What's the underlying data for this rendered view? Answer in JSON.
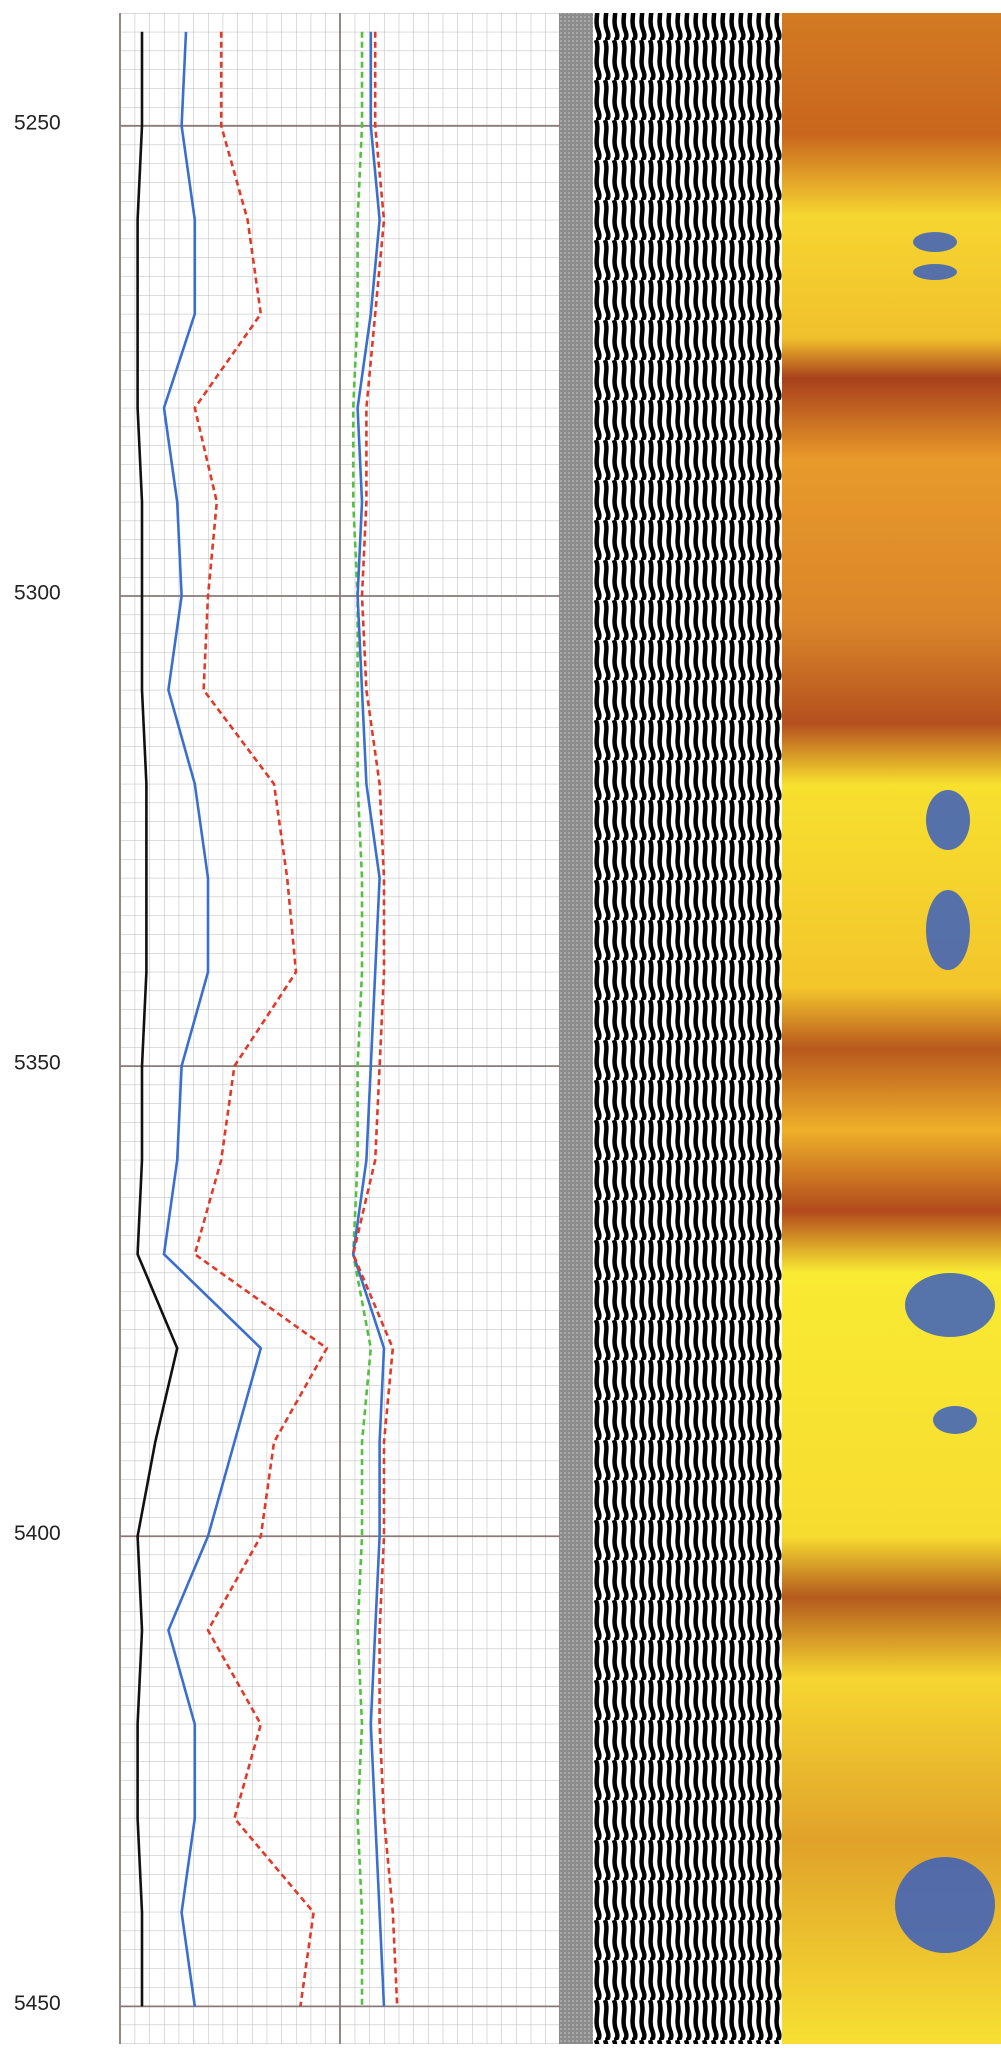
{
  "chart_data": {
    "type": "line",
    "orientation": "vertical",
    "x": [
      5240,
      5250,
      5260,
      5270,
      5280,
      5290,
      5300,
      5310,
      5320,
      5330,
      5340,
      5350,
      5360,
      5370,
      5380,
      5390,
      5400,
      5410,
      5420,
      5430,
      5440,
      5450
    ],
    "xlim": [
      5238,
      5454
    ],
    "xticks": [
      5250,
      5300,
      5350,
      5400,
      5450
    ],
    "ylim": [
      0,
      100
    ],
    "grid": true,
    "series": [
      {
        "color": "#111111",
        "dashed": false,
        "values": [
          5,
          5,
          4,
          4,
          4,
          5,
          5,
          5,
          6,
          6,
          6,
          5,
          5,
          4,
          13,
          8,
          4,
          5,
          4,
          4,
          5,
          5
        ]
      },
      {
        "color": "#3a6fd0",
        "dashed": false,
        "values": [
          15,
          14,
          17,
          17,
          10,
          13,
          14,
          11,
          17,
          20,
          20,
          14,
          13,
          10,
          32,
          26,
          20,
          11,
          17,
          17,
          14,
          17
        ]
      },
      {
        "color": "#e03a2a",
        "dashed": true,
        "values": [
          23,
          23,
          29,
          32,
          17,
          22,
          20,
          19,
          35,
          38,
          40,
          26,
          23,
          17,
          47,
          35,
          32,
          20,
          32,
          26,
          44,
          41
        ]
      },
      {
        "color": "#55c040",
        "dashed": true,
        "values": [
          55,
          55,
          54,
          54,
          53,
          53,
          54,
          54,
          54,
          55,
          55,
          54,
          54,
          53,
          57,
          55,
          55,
          54,
          55,
          54,
          55,
          55
        ]
      },
      {
        "color": "#3a6fd0",
        "dashed": false,
        "values": [
          57,
          57,
          59,
          57,
          54,
          55,
          54,
          55,
          56,
          59,
          58,
          57,
          56,
          53,
          60,
          59,
          59,
          58,
          57,
          58,
          59,
          60
        ]
      },
      {
        "color": "#e03a2a",
        "dashed": true,
        "values": [
          58,
          58,
          60,
          58,
          56,
          56,
          55,
          56,
          59,
          60,
          60,
          59,
          58,
          53,
          62,
          60,
          60,
          59,
          59,
          60,
          62,
          63
        ]
      }
    ]
  }
}
